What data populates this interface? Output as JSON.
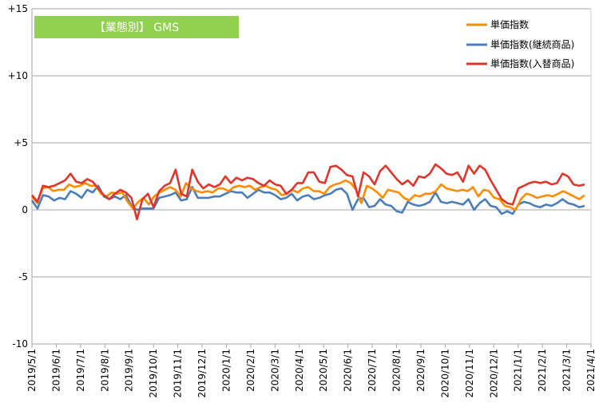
{
  "chart_data": {
    "type": "line",
    "title": "【業態別】 GMS",
    "banner_color": "#92D050",
    "y_ticks": [
      "+15",
      "+10",
      "+5",
      "0",
      "-5",
      "-10"
    ],
    "y_tick_values": [
      15,
      10,
      5,
      0,
      -5,
      -10
    ],
    "ylim": [
      -10,
      15
    ],
    "grid": true,
    "legend_position": "top-right",
    "x_tick_labels": [
      "2019/5/1",
      "2019/6/1",
      "2019/7/1",
      "2019/8/1",
      "2019/9/1",
      "2019/10/1",
      "2019/11/1",
      "2019/12/1",
      "2020/1/1",
      "2020/2/1",
      "2020/3/1",
      "2020/4/1",
      "2020/5/1",
      "2020/6/1",
      "2020/7/1",
      "2020/8/1",
      "2020/9/1",
      "2020/10/1",
      "2020/11/1",
      "2020/12/1",
      "2021/1/1",
      "2021/2/1",
      "2021/3/1",
      "2021/4/1"
    ],
    "series": [
      {
        "name": "単価指数",
        "color": "#FF8C00",
        "values": [
          1.0,
          0.5,
          1.6,
          1.7,
          1.4,
          1.5,
          1.5,
          1.9,
          1.7,
          1.8,
          2.0,
          1.8,
          1.8,
          1.2,
          1.0,
          1.3,
          1.2,
          1.3,
          0.6,
          0.1,
          0.6,
          0.9,
          0.4,
          1.0,
          1.3,
          1.5,
          1.7,
          1.5,
          1.0,
          2.0,
          1.6,
          1.4,
          1.3,
          1.4,
          1.3,
          1.6,
          1.6,
          1.4,
          1.7,
          1.8,
          1.7,
          1.8,
          1.5,
          1.7,
          1.8,
          1.6,
          1.5,
          1.1,
          1.2,
          1.5,
          1.3,
          1.6,
          1.7,
          1.4,
          1.4,
          1.2,
          1.7,
          1.9,
          2.0,
          2.2,
          2.0,
          1.5,
          0.5,
          1.8,
          1.6,
          1.3,
          0.9,
          1.5,
          1.4,
          1.3,
          0.9,
          0.7,
          1.1,
          1.0,
          1.2,
          1.2,
          1.4,
          1.9,
          1.6,
          1.5,
          1.4,
          1.5,
          1.4,
          1.7,
          1.0,
          1.5,
          1.4,
          0.9,
          0.8,
          0.3,
          0.2,
          0.0,
          0.8,
          1.2,
          1.1,
          0.9,
          1.0,
          1.1,
          1.0,
          1.2,
          1.4,
          1.2,
          1.0,
          0.8,
          1.1
        ]
      },
      {
        "name": "単価指数(継続商品)",
        "color": "#4A7EBB",
        "values": [
          0.7,
          0.1,
          1.1,
          1.0,
          0.7,
          0.9,
          0.8,
          1.4,
          1.2,
          0.9,
          1.5,
          1.3,
          1.8,
          1.0,
          0.8,
          1.0,
          0.8,
          1.1,
          0.3,
          0.0,
          0.1,
          0.1,
          0.1,
          0.9,
          1.0,
          1.1,
          1.3,
          0.7,
          0.8,
          1.7,
          0.9,
          0.9,
          0.9,
          1.0,
          1.0,
          1.2,
          1.4,
          1.3,
          1.3,
          0.9,
          1.2,
          1.5,
          1.3,
          1.3,
          1.1,
          0.8,
          0.9,
          1.2,
          0.7,
          1.0,
          1.1,
          0.8,
          0.9,
          1.1,
          1.2,
          1.5,
          1.6,
          1.2,
          0.0,
          0.8,
          0.9,
          0.2,
          0.3,
          0.8,
          0.4,
          0.3,
          -0.1,
          -0.2,
          0.6,
          0.4,
          0.3,
          0.4,
          0.6,
          1.3,
          0.6,
          0.5,
          0.6,
          0.5,
          0.4,
          0.8,
          0.0,
          0.5,
          0.8,
          0.3,
          0.2,
          -0.3,
          -0.1,
          -0.3,
          0.4,
          0.6,
          0.5,
          0.3,
          0.2,
          0.4,
          0.3,
          0.5,
          0.8,
          0.5,
          0.4,
          0.2,
          0.3
        ]
      },
      {
        "name": "単価指数(入替商品)",
        "color": "#E0352B",
        "values": [
          1.1,
          0.6,
          1.8,
          1.7,
          1.8,
          2.0,
          2.2,
          2.7,
          2.1,
          2.0,
          2.3,
          2.1,
          1.6,
          1.1,
          0.8,
          1.2,
          1.5,
          1.3,
          0.9,
          -0.7,
          0.8,
          1.2,
          0.2,
          1.4,
          1.8,
          2.0,
          3.0,
          1.2,
          1.0,
          3.0,
          2.1,
          1.6,
          1.9,
          1.7,
          1.9,
          2.5,
          2.0,
          2.4,
          2.2,
          2.4,
          2.3,
          2.0,
          1.8,
          2.2,
          1.9,
          1.8,
          1.2,
          1.5,
          2.0,
          2.0,
          2.8,
          2.8,
          2.1,
          2.0,
          3.2,
          3.3,
          3.0,
          2.6,
          2.5,
          1.0,
          2.8,
          2.5,
          1.9,
          2.9,
          3.3,
          2.8,
          2.3,
          1.9,
          2.2,
          1.8,
          2.5,
          2.4,
          2.7,
          3.4,
          3.1,
          2.7,
          2.6,
          2.8,
          2.1,
          3.3,
          2.7,
          3.3,
          3.0,
          2.2,
          1.5,
          0.8,
          0.5,
          0.4,
          1.6,
          1.8,
          2.0,
          2.1,
          2.0,
          2.1,
          1.9,
          2.0,
          2.7,
          2.5,
          1.9,
          1.8,
          1.9
        ]
      }
    ]
  }
}
